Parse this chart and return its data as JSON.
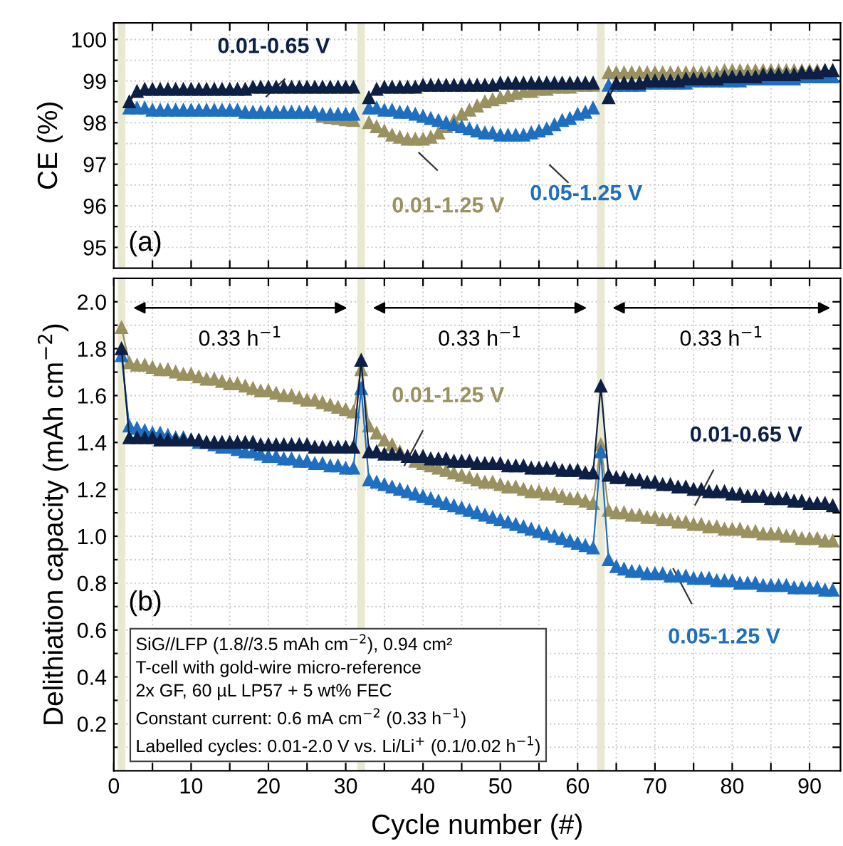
{
  "chart_data": [
    {
      "type": "line",
      "marker": "triangle",
      "line_style": "solid",
      "grid": true,
      "legend": false,
      "tick_labels": "y",
      "ylabel": "CE (%)",
      "xlim": [
        0,
        94
      ],
      "ylim": [
        94.5,
        100.4
      ],
      "xticks": [
        0,
        {
          "value": 5,
          "label": null
        },
        10,
        {
          "value": 15,
          "label": null
        },
        20,
        {
          "value": 25,
          "label": null
        },
        30,
        {
          "value": 35,
          "label": null
        },
        40,
        {
          "value": 45,
          "label": null
        },
        50,
        {
          "value": 55,
          "label": null
        },
        60,
        {
          "value": 65,
          "label": null
        },
        70,
        {
          "value": 75,
          "label": null
        },
        80,
        {
          "value": 85,
          "label": null
        },
        90
      ],
      "yticks": [
        95,
        {
          "value": 95.5,
          "label": null
        },
        96,
        {
          "value": 96.5,
          "label": null
        },
        97,
        {
          "value": 97.5,
          "label": null
        },
        98,
        {
          "value": 98.5,
          "label": null
        },
        99,
        {
          "value": 99.5,
          "label": null
        },
        100
      ],
      "bands": [
        {
          "axis": "x",
          "from": 0.5,
          "to": 1.5,
          "color": "#e9e9d2"
        },
        {
          "axis": "x",
          "from": 31.5,
          "to": 32.5,
          "color": "#e9e9d2"
        },
        {
          "axis": "x",
          "from": 62.5,
          "to": 63.5,
          "color": "#e9e9d2"
        }
      ],
      "annotations": [
        "(a)"
      ],
      "x": [
        2,
        3,
        4,
        5,
        6,
        7,
        8,
        9,
        10,
        11,
        12,
        13,
        14,
        15,
        16,
        17,
        18,
        19,
        20,
        21,
        22,
        23,
        24,
        25,
        26,
        27,
        28,
        29,
        30,
        31,
        32,
        33,
        34,
        35,
        36,
        37,
        38,
        39,
        40,
        41,
        42,
        43,
        44,
        45,
        46,
        47,
        48,
        49,
        50,
        51,
        52,
        53,
        54,
        55,
        56,
        57,
        58,
        59,
        60,
        61,
        62,
        63,
        64,
        65,
        66,
        67,
        68,
        69,
        70,
        71,
        72,
        73,
        74,
        75,
        76,
        77,
        78,
        79,
        80,
        81,
        82,
        83,
        84,
        85,
        86,
        87,
        88,
        89,
        90,
        91,
        92,
        93
      ],
      "series": [
        {
          "name": "0.01-1.25 V",
          "color": "#9a9160",
          "values": [
            null,
            null,
            null,
            null,
            null,
            null,
            null,
            null,
            null,
            null,
            null,
            null,
            null,
            null,
            null,
            null,
            null,
            null,
            null,
            null,
            null,
            null,
            null,
            null,
            null,
            98.15,
            98.12,
            98.1,
            98.07,
            98.05,
            null,
            98.0,
            97.9,
            97.8,
            97.7,
            97.65,
            97.6,
            97.6,
            97.6,
            97.65,
            97.75,
            97.9,
            98.05,
            98.2,
            98.3,
            98.4,
            98.5,
            98.55,
            98.6,
            98.65,
            98.7,
            98.75,
            98.75,
            98.8,
            98.8,
            98.85,
            98.85,
            98.85,
            98.9,
            98.9,
            98.9,
            null,
            99.2,
            99.2,
            99.2,
            99.2,
            99.2,
            99.2,
            99.2,
            99.2,
            99.2,
            99.2,
            99.2,
            99.2,
            99.2,
            99.2,
            99.2,
            99.25,
            99.25,
            99.25,
            99.25,
            99.25,
            99.25,
            99.25,
            99.25,
            99.25,
            99.25,
            99.25,
            99.25,
            99.25,
            99.25,
            99.25
          ]
        },
        {
          "name": "0.05-1.25 V",
          "color": "#1f6fc0",
          "values": [
            98.35,
            98.35,
            98.35,
            98.3,
            98.3,
            98.3,
            98.3,
            98.3,
            98.3,
            98.3,
            98.3,
            98.3,
            98.3,
            98.3,
            98.3,
            98.25,
            98.25,
            98.25,
            98.25,
            98.25,
            98.25,
            98.25,
            98.25,
            98.25,
            98.25,
            98.2,
            98.2,
            98.2,
            98.2,
            98.2,
            null,
            98.35,
            98.35,
            98.3,
            98.3,
            98.25,
            98.25,
            98.2,
            98.15,
            98.1,
            98.05,
            98.0,
            97.95,
            97.9,
            97.85,
            97.8,
            97.75,
            97.75,
            97.7,
            97.7,
            97.7,
            97.7,
            97.75,
            97.8,
            97.85,
            97.95,
            98.05,
            98.1,
            98.2,
            98.25,
            98.35,
            null,
            98.9,
            98.9,
            98.9,
            98.9,
            98.9,
            98.95,
            98.95,
            98.95,
            98.95,
            98.95,
            98.95,
            99.0,
            99.0,
            99.0,
            99.0,
            99.0,
            99.0,
            99.0,
            99.05,
            99.05,
            99.05,
            99.05,
            99.05,
            99.05,
            99.05,
            99.1,
            99.1,
            99.1,
            99.1,
            99.1
          ]
        },
        {
          "name": "0.01-0.65 V",
          "color": "#0d1f45",
          "values": [
            98.5,
            98.75,
            98.8,
            98.8,
            98.8,
            98.8,
            98.8,
            98.8,
            98.8,
            98.8,
            98.8,
            98.8,
            98.8,
            98.8,
            98.8,
            98.8,
            98.85,
            98.85,
            98.85,
            98.85,
            98.85,
            98.85,
            98.85,
            98.85,
            98.85,
            98.85,
            98.85,
            98.85,
            98.85,
            98.85,
            null,
            98.6,
            98.8,
            98.85,
            98.85,
            98.85,
            98.85,
            98.85,
            98.9,
            98.9,
            98.9,
            98.9,
            98.9,
            98.9,
            98.9,
            98.9,
            98.9,
            98.9,
            98.95,
            98.95,
            98.95,
            98.95,
            98.95,
            98.95,
            98.95,
            98.95,
            98.95,
            98.95,
            98.95,
            98.95,
            98.95,
            null,
            98.6,
            98.95,
            98.95,
            98.95,
            98.95,
            99.0,
            99.0,
            99.0,
            99.0,
            99.0,
            99.05,
            99.05,
            99.05,
            99.05,
            99.05,
            99.1,
            99.1,
            99.1,
            99.1,
            99.1,
            99.15,
            99.15,
            99.15,
            99.15,
            99.15,
            99.2,
            99.2,
            99.2,
            99.25,
            99.25
          ]
        }
      ]
    },
    {
      "type": "line",
      "marker": "triangle",
      "line_style": "solid",
      "grid": true,
      "legend": false,
      "xlabel": "Cycle number (#)",
      "ylabel": "Delithiation capacity (mAh cm$^{−2}$)",
      "xlim": [
        0,
        94
      ],
      "ylim": [
        0,
        2.1
      ],
      "xticks": [
        0,
        {
          "value": 5,
          "label": null
        },
        10,
        {
          "value": 15,
          "label": null
        },
        20,
        {
          "value": 25,
          "label": null
        },
        30,
        {
          "value": 35,
          "label": null
        },
        40,
        {
          "value": 45,
          "label": null
        },
        50,
        {
          "value": 55,
          "label": null
        },
        60,
        {
          "value": 65,
          "label": null
        },
        70,
        {
          "value": 75,
          "label": null
        },
        80,
        {
          "value": 85,
          "label": null
        },
        90
      ],
      "yticks": [
        {
          "value": 0.1,
          "label": null
        },
        {
          "value": 0.2,
          "label": "0.2"
        },
        {
          "value": 0.3,
          "label": null
        },
        {
          "value": 0.4,
          "label": "0.4"
        },
        {
          "value": 0.5,
          "label": null
        },
        {
          "value": 0.6,
          "label": "0.6"
        },
        {
          "value": 0.7,
          "label": null
        },
        {
          "value": 0.8,
          "label": "0.8"
        },
        {
          "value": 0.9,
          "label": null
        },
        {
          "value": 1.0,
          "label": "1.0"
        },
        {
          "value": 1.1,
          "label": null
        },
        {
          "value": 1.2,
          "label": "1.2"
        },
        {
          "value": 1.3,
          "label": null
        },
        {
          "value": 1.4,
          "label": "1.4"
        },
        {
          "value": 1.5,
          "label": null
        },
        {
          "value": 1.6,
          "label": "1.6"
        },
        {
          "value": 1.7,
          "label": null
        },
        {
          "value": 1.8,
          "label": "1.8"
        },
        {
          "value": 1.9,
          "label": null
        },
        {
          "value": 2.0,
          "label": "2.0"
        }
      ],
      "bands": [
        {
          "axis": "x",
          "from": 0.5,
          "to": 1.5,
          "color": "#e9e9d2"
        },
        {
          "axis": "x",
          "from": 31.5,
          "to": 32.5,
          "color": "#e9e9d2"
        },
        {
          "axis": "x",
          "from": 62.5,
          "to": 63.5,
          "color": "#e9e9d2"
        }
      ],
      "annotations": [
        "(b)",
        "0.33 h$^{−1}$",
        "0.33 h$^{−1}$",
        "0.33 h$^{−1}$",
        "SiG//LFP (1.8//3.5 mAh cm$^{−2}$), 0.94 cm²\nT-cell with gold-wire micro-reference\n2x GF, 60 µL LP57 + 5 wt% FEC\nConstant current: 0.6 mA cm$^{−2}$ (0.33 h$^{−1}$)\nLabelled cycles: 0.01-2.0 V vs. Li/Li$^{+}$ (0.1/0.02 h$^{−1}$)"
      ],
      "x": [
        1,
        2,
        3,
        4,
        5,
        6,
        7,
        8,
        9,
        10,
        11,
        12,
        13,
        14,
        15,
        16,
        17,
        18,
        19,
        20,
        21,
        22,
        23,
        24,
        25,
        26,
        27,
        28,
        29,
        30,
        31,
        32,
        33,
        34,
        35,
        36,
        37,
        38,
        39,
        40,
        41,
        42,
        43,
        44,
        45,
        46,
        47,
        48,
        49,
        50,
        51,
        52,
        53,
        54,
        55,
        56,
        57,
        58,
        59,
        60,
        61,
        62,
        63,
        64,
        65,
        66,
        67,
        68,
        69,
        70,
        71,
        72,
        73,
        74,
        75,
        76,
        77,
        78,
        79,
        80,
        81,
        82,
        83,
        84,
        85,
        86,
        87,
        88,
        89,
        90,
        91,
        92,
        93
      ],
      "series": [
        {
          "name": "0.01-1.25 V",
          "color": "#9a9160",
          "values": [
            1.89,
            1.74,
            1.73,
            1.73,
            1.72,
            1.71,
            1.71,
            1.7,
            1.69,
            1.69,
            1.68,
            1.67,
            1.67,
            1.66,
            1.65,
            1.65,
            1.64,
            1.63,
            1.62,
            1.62,
            1.61,
            1.6,
            1.6,
            1.59,
            1.58,
            1.58,
            1.57,
            1.56,
            1.55,
            1.54,
            1.53,
            1.71,
            1.47,
            1.44,
            1.41,
            1.39,
            1.36,
            1.34,
            1.32,
            1.31,
            1.3,
            1.29,
            1.28,
            1.27,
            1.26,
            1.25,
            1.24,
            1.23,
            1.23,
            1.22,
            1.21,
            1.21,
            1.2,
            1.19,
            1.19,
            1.18,
            1.18,
            1.17,
            1.16,
            1.16,
            1.15,
            1.14,
            1.39,
            1.11,
            1.1,
            1.1,
            1.09,
            1.09,
            1.08,
            1.08,
            1.07,
            1.07,
            1.06,
            1.06,
            1.05,
            1.05,
            1.04,
            1.04,
            1.03,
            1.03,
            1.03,
            1.02,
            1.02,
            1.01,
            1.01,
            1.01,
            1.0,
            1.0,
            0.99,
            0.99,
            0.99,
            0.98,
            0.98
          ]
        },
        {
          "name": "0.05-1.25 V",
          "color": "#1f6fc0",
          "values": [
            1.77,
            1.47,
            1.46,
            1.45,
            1.44,
            1.44,
            1.43,
            1.42,
            1.42,
            1.41,
            1.4,
            1.4,
            1.39,
            1.38,
            1.38,
            1.37,
            1.36,
            1.36,
            1.35,
            1.34,
            1.34,
            1.33,
            1.33,
            1.32,
            1.32,
            1.31,
            1.31,
            1.3,
            1.3,
            1.29,
            1.29,
            1.63,
            1.24,
            1.23,
            1.22,
            1.21,
            1.2,
            1.19,
            1.18,
            1.17,
            1.16,
            1.15,
            1.14,
            1.13,
            1.12,
            1.11,
            1.1,
            1.09,
            1.08,
            1.07,
            1.06,
            1.05,
            1.04,
            1.03,
            1.02,
            1.01,
            1.0,
            0.99,
            0.98,
            0.97,
            0.96,
            0.95,
            1.36,
            0.9,
            0.87,
            0.86,
            0.85,
            0.85,
            0.84,
            0.84,
            0.84,
            0.83,
            0.83,
            0.83,
            0.82,
            0.82,
            0.82,
            0.81,
            0.81,
            0.81,
            0.8,
            0.8,
            0.8,
            0.79,
            0.79,
            0.79,
            0.79,
            0.78,
            0.78,
            0.78,
            0.78,
            0.77,
            0.77
          ]
        },
        {
          "name": "0.01-0.65 V",
          "color": "#0d1f45",
          "values": [
            1.8,
            1.42,
            1.42,
            1.42,
            1.42,
            1.41,
            1.41,
            1.41,
            1.41,
            1.41,
            1.41,
            1.4,
            1.4,
            1.4,
            1.4,
            1.4,
            1.4,
            1.4,
            1.39,
            1.39,
            1.39,
            1.39,
            1.39,
            1.39,
            1.39,
            1.38,
            1.38,
            1.38,
            1.38,
            1.38,
            1.38,
            1.75,
            1.36,
            1.36,
            1.35,
            1.35,
            1.35,
            1.34,
            1.34,
            1.34,
            1.33,
            1.33,
            1.33,
            1.32,
            1.32,
            1.32,
            1.31,
            1.31,
            1.31,
            1.31,
            1.3,
            1.3,
            1.3,
            1.29,
            1.29,
            1.29,
            1.29,
            1.28,
            1.28,
            1.28,
            1.27,
            1.27,
            1.64,
            1.26,
            1.25,
            1.25,
            1.24,
            1.24,
            1.23,
            1.23,
            1.22,
            1.22,
            1.21,
            1.21,
            1.2,
            1.2,
            1.19,
            1.19,
            1.19,
            1.18,
            1.18,
            1.17,
            1.17,
            1.17,
            1.16,
            1.16,
            1.16,
            1.15,
            1.15,
            1.14,
            1.14,
            1.14,
            1.13
          ]
        }
      ]
    }
  ]
}
